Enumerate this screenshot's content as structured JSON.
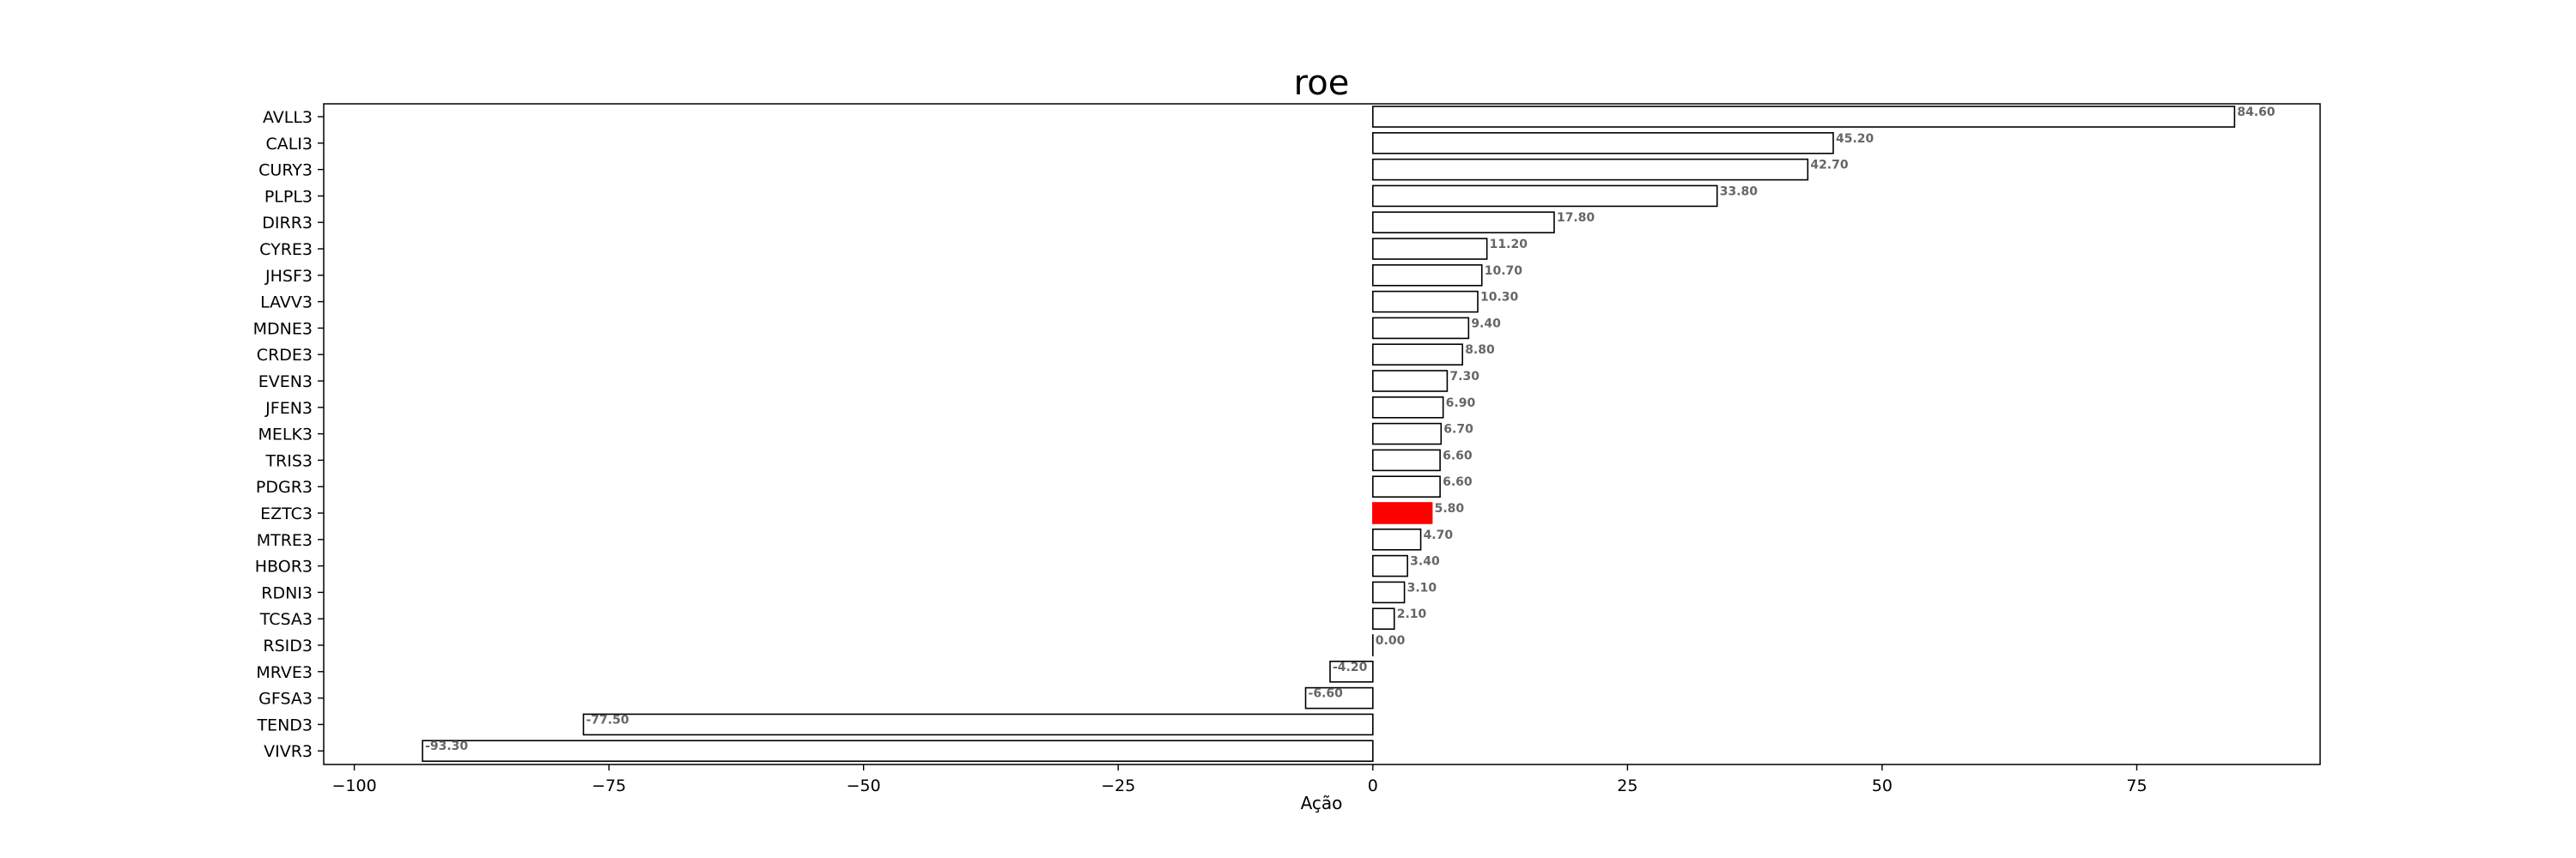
{
  "chart_data": {
    "type": "bar",
    "orientation": "horizontal",
    "title": "roe",
    "xlabel": "Ação",
    "ylabel": "",
    "xlim": [
      -103,
      93
    ],
    "xticks": [
      -100,
      -75,
      -50,
      -25,
      0,
      25,
      50,
      75
    ],
    "xtick_labels": [
      "−100",
      "−75",
      "−50",
      "−25",
      "0",
      "25",
      "50",
      "75"
    ],
    "grid": false,
    "categories": [
      "AVLL3",
      "CALI3",
      "CURY3",
      "PLPL3",
      "DIRR3",
      "CYRE3",
      "JHSF3",
      "LAVV3",
      "MDNE3",
      "CRDE3",
      "EVEN3",
      "JFEN3",
      "MELK3",
      "TRIS3",
      "PDGR3",
      "EZTC3",
      "MTRE3",
      "HBOR3",
      "RDNI3",
      "TCSA3",
      "RSID3",
      "MRVE3",
      "GFSA3",
      "TEND3",
      "VIVR3"
    ],
    "values": [
      84.6,
      45.2,
      42.7,
      33.8,
      17.8,
      11.2,
      10.7,
      10.3,
      9.4,
      8.8,
      7.3,
      6.9,
      6.7,
      6.6,
      6.6,
      5.8,
      4.7,
      3.4,
      3.1,
      2.1,
      0.0,
      -4.2,
      -6.6,
      -77.5,
      -93.3
    ],
    "value_labels": [
      "84.60",
      "45.20",
      "42.70",
      "33.80",
      "17.80",
      "11.20",
      "10.70",
      "10.30",
      "9.40",
      "8.80",
      "7.30",
      "6.90",
      "6.70",
      "6.60",
      "6.60",
      "5.80",
      "4.70",
      "3.40",
      "3.10",
      "2.10",
      "0.00",
      "-4.20",
      "-6.60",
      "-77.50",
      "-93.30"
    ],
    "highlight": "EZTC3",
    "colors": {
      "bar_fill": "#ffffff",
      "bar_edge": "#000000",
      "highlight_fill": "#ff0000",
      "label": "#666666"
    }
  }
}
